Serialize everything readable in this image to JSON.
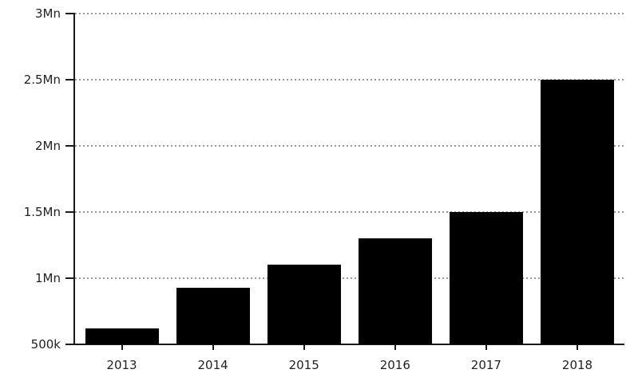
{
  "chart_data": {
    "type": "bar",
    "title": "",
    "xlabel": "",
    "ylabel": "",
    "categories": [
      "2013",
      "2014",
      "2015",
      "2016",
      "2017",
      "2018"
    ],
    "values": [
      620000,
      930000,
      1100000,
      1300000,
      1500000,
      2500000
    ],
    "ylim": [
      500000,
      3000000
    ],
    "yticks": [
      {
        "value": 500000,
        "label": "500k"
      },
      {
        "value": 1000000,
        "label": "1Mn"
      },
      {
        "value": 1500000,
        "label": "1.5Mn"
      },
      {
        "value": 2000000,
        "label": "2Mn"
      },
      {
        "value": 2500000,
        "label": "2.5Mn"
      },
      {
        "value": 3000000,
        "label": "3Mn"
      }
    ],
    "grid": "horizontal-dotted",
    "legend": "none",
    "colors": {
      "background": "#ffffff",
      "bar": "#000000",
      "axis": "#1a1a1a",
      "gridline": "#999999",
      "tick_text": "#222222"
    }
  }
}
